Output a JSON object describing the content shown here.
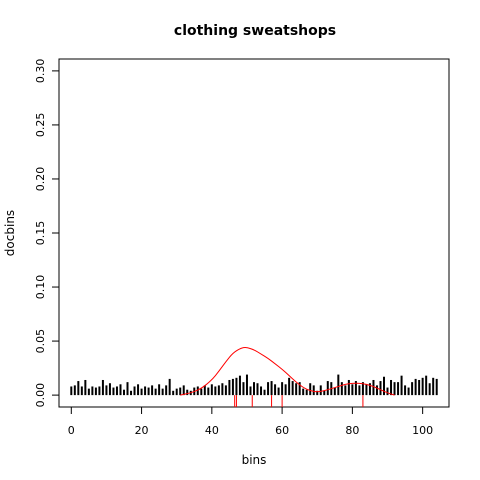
{
  "chart_data": {
    "type": "bar",
    "title": "clothing sweatshops",
    "xlabel": "bins",
    "ylabel": "docbins",
    "xlim": [
      -3.5,
      107.5
    ],
    "ylim": [
      -0.011,
      0.311
    ],
    "x_ticks": [
      0,
      20,
      40,
      60,
      80,
      100
    ],
    "x_tick_labels": [
      "0",
      "20",
      "40",
      "60",
      "80",
      "100"
    ],
    "y_ticks": [
      0.0,
      0.05,
      0.1,
      0.15,
      0.2,
      0.25,
      0.3
    ],
    "y_tick_labels": [
      "0.00",
      "0.05",
      "0.10",
      "0.15",
      "0.20",
      "0.25",
      "0.30"
    ],
    "grid": false,
    "bar_color": "#000000",
    "curve_color": "#ff0000",
    "marker_color": "#ff0000",
    "bars": {
      "x": [
        0,
        1,
        2,
        3,
        4,
        5,
        6,
        7,
        8,
        9,
        10,
        11,
        12,
        13,
        14,
        15,
        16,
        17,
        18,
        19,
        20,
        21,
        22,
        23,
        24,
        25,
        26,
        27,
        28,
        29,
        30,
        31,
        32,
        33,
        34,
        35,
        36,
        37,
        38,
        39,
        40,
        41,
        42,
        43,
        44,
        45,
        46,
        47,
        48,
        49,
        50,
        51,
        52,
        53,
        54,
        55,
        56,
        57,
        58,
        59,
        60,
        61,
        62,
        63,
        64,
        65,
        66,
        67,
        68,
        69,
        70,
        71,
        72,
        73,
        74,
        75,
        76,
        77,
        78,
        79,
        80,
        81,
        82,
        83,
        84,
        85,
        86,
        87,
        88,
        89,
        90,
        91,
        92,
        93,
        94,
        95,
        96,
        97,
        98,
        99,
        100,
        101,
        102,
        103,
        104
      ],
      "values": [
        0.008,
        0.009,
        0.013,
        0.008,
        0.014,
        0.006,
        0.008,
        0.007,
        0.008,
        0.014,
        0.009,
        0.011,
        0.007,
        0.008,
        0.01,
        0.005,
        0.012,
        0.004,
        0.008,
        0.01,
        0.006,
        0.008,
        0.007,
        0.009,
        0.006,
        0.01,
        0.006,
        0.009,
        0.015,
        0.004,
        0.006,
        0.007,
        0.009,
        0.005,
        0.004,
        0.007,
        0.008,
        0.006,
        0.009,
        0.007,
        0.01,
        0.008,
        0.009,
        0.011,
        0.009,
        0.014,
        0.015,
        0.016,
        0.018,
        0.012,
        0.019,
        0.008,
        0.012,
        0.011,
        0.008,
        0.005,
        0.012,
        0.013,
        0.01,
        0.007,
        0.012,
        0.01,
        0.016,
        0.013,
        0.011,
        0.012,
        0.006,
        0.005,
        0.011,
        0.009,
        0.004,
        0.009,
        0.004,
        0.013,
        0.012,
        0.007,
        0.019,
        0.012,
        0.009,
        0.014,
        0.01,
        0.013,
        0.009,
        0.012,
        0.01,
        0.011,
        0.014,
        0.009,
        0.013,
        0.017,
        0.007,
        0.014,
        0.012,
        0.012,
        0.018,
        0.009,
        0.007,
        0.012,
        0.015,
        0.014,
        0.016,
        0.018,
        0.011,
        0.016,
        0.015
      ]
    },
    "density_curve": {
      "x": [
        31,
        34,
        37,
        40,
        42,
        44,
        46,
        48,
        49,
        50,
        52,
        54,
        56,
        58,
        60,
        62,
        64,
        66,
        68,
        70,
        72,
        74,
        76,
        78,
        80,
        82,
        84,
        86,
        88,
        90,
        92
      ],
      "y": [
        0.0,
        0.002,
        0.006,
        0.014,
        0.022,
        0.031,
        0.039,
        0.043,
        0.044,
        0.044,
        0.042,
        0.038,
        0.034,
        0.029,
        0.024,
        0.018,
        0.012,
        0.007,
        0.004,
        0.003,
        0.004,
        0.006,
        0.008,
        0.01,
        0.011,
        0.011,
        0.01,
        0.008,
        0.005,
        0.002,
        0.0
      ]
    },
    "markers": {
      "x": [
        46.5,
        47,
        51.5,
        57,
        60,
        83
      ],
      "height": [
        -0.011,
        -0.011,
        -0.011,
        -0.011,
        -0.011,
        -0.011
      ],
      "top": [
        0.0,
        0.0,
        0.0,
        0.0,
        0.0,
        0.0
      ]
    }
  }
}
